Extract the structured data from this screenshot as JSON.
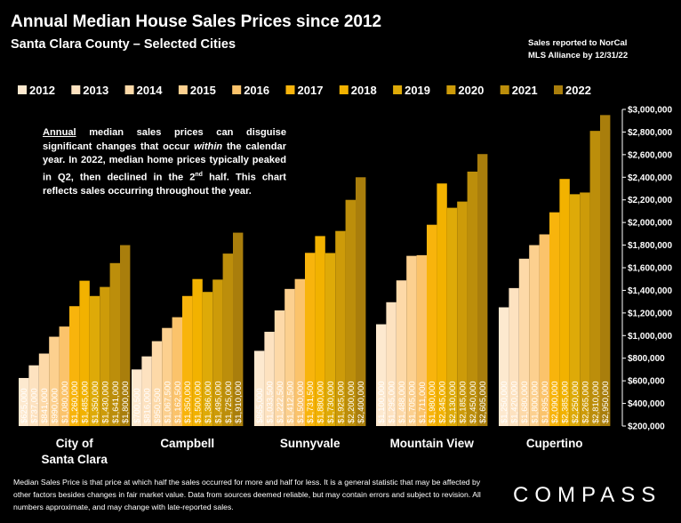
{
  "title": "Annual Median House Sales Prices since 2012",
  "subtitle": "Santa Clara County – Selected Cities",
  "source_line1": "Sales reported to NorCal",
  "source_line2": "MLS Alliance by 12/31/22",
  "note": {
    "part1": "Annual",
    "part2": " median sales prices can disguise significant changes that occur ",
    "part3": "within",
    "part4": " the calendar year. In 2022, median home prices typically peaked in Q2, then declined in the 2",
    "part5": "nd",
    "part6": " half. This chart reflects sales occurring throughout the year."
  },
  "footer": "Median Sales Price is that price at which half the sales occurred for more and half for less. It is a general statistic that may be affected by other factors besides changes in fair market value. Data from sources deemed reliable, but may contain errors and subject to revision.  All numbers approximate, and may change with late-reported sales.",
  "logo": "COMPASS",
  "chart_data": {
    "type": "bar",
    "title": "Annual Median House Sales Prices since 2012",
    "subtitle": "Santa Clara County – Selected Cities",
    "categories": [
      "City of\nSanta Clara",
      "Campbell",
      "Sunnyvale",
      "Mountain View",
      "Cupertino"
    ],
    "ylim": [
      200000,
      3000000
    ],
    "y_ticks": [
      200000,
      400000,
      600000,
      800000,
      1000000,
      1200000,
      1400000,
      1600000,
      1800000,
      2000000,
      2200000,
      2400000,
      2600000,
      2800000,
      3000000
    ],
    "y_axis_position": "right",
    "grid": false,
    "legend_position": "top",
    "series": [
      {
        "name": "2012",
        "color": "#fde9cf",
        "values": [
          625000,
          700500,
          865000,
          1100000,
          1250000
        ]
      },
      {
        "name": "2013",
        "color": "#fde2c0",
        "values": [
          737000,
          816000,
          1033500,
          1295000,
          1420000
        ]
      },
      {
        "name": "2014",
        "color": "#fdd9a8",
        "values": [
          841000,
          950500,
          1222500,
          1488000,
          1680000
        ]
      },
      {
        "name": "2015",
        "color": "#fcd08f",
        "values": [
          990000,
          1067500,
          1412500,
          1705000,
          1800000
        ]
      },
      {
        "name": "2016",
        "color": "#fbc36b",
        "values": [
          1080000,
          1162500,
          1500000,
          1711000,
          1895000
        ]
      },
      {
        "name": "2017",
        "color": "#f8b40c",
        "values": [
          1260000,
          1350000,
          1731500,
          1980000,
          2090000
        ]
      },
      {
        "name": "2018",
        "color": "#f2b200",
        "values": [
          1485000,
          1500000,
          1880000,
          2345000,
          2385000
        ]
      },
      {
        "name": "2019",
        "color": "#deaa08",
        "values": [
          1350000,
          1386000,
          1730000,
          2130000,
          2250000
        ]
      },
      {
        "name": "2020",
        "color": "#cd9b09",
        "values": [
          1430000,
          1495000,
          1925000,
          2185000,
          2265000
        ]
      },
      {
        "name": "2021",
        "color": "#bc8e0b",
        "values": [
          1641000,
          1725000,
          2200000,
          2450000,
          2810000
        ]
      },
      {
        "name": "2022",
        "color": "#a97e0c",
        "values": [
          1800000,
          1910000,
          2400000,
          2605000,
          2950000
        ]
      }
    ]
  }
}
